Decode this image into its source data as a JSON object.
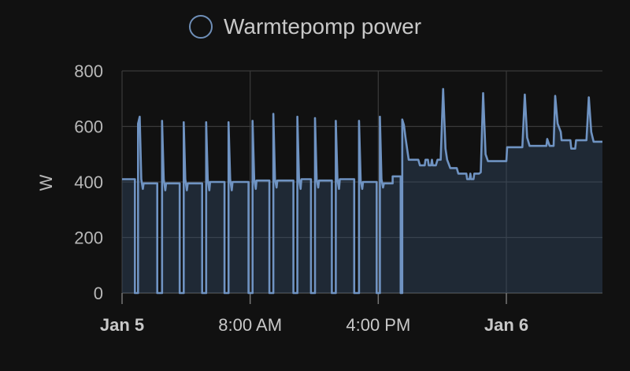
{
  "chart_data": {
    "type": "line",
    "ylabel": "W",
    "ylim": [
      0,
      800
    ],
    "yticks": [
      0,
      200,
      400,
      600,
      800
    ],
    "xlim_hours": [
      0,
      30
    ],
    "xticks": [
      {
        "label": "Jan 5",
        "hour": 0,
        "bold": true
      },
      {
        "label": "8:00 AM",
        "hour": 8,
        "bold": false
      },
      {
        "label": "4:00 PM",
        "hour": 16,
        "bold": false
      },
      {
        "label": "Jan 6",
        "hour": 24,
        "bold": true
      }
    ],
    "grid": true,
    "legend_position": "top",
    "colors": {
      "line": "#6f93c2",
      "fill": "#3a5578",
      "grid": "#3a3a3a"
    },
    "series": [
      {
        "name": "Warmtepomp power",
        "points": [
          [
            0.0,
            410
          ],
          [
            0.8,
            410
          ],
          [
            0.8,
            0
          ],
          [
            1.0,
            0
          ],
          [
            1.0,
            610
          ],
          [
            1.1,
            635
          ],
          [
            1.2,
            410
          ],
          [
            1.3,
            375
          ],
          [
            1.35,
            395
          ],
          [
            2.2,
            395
          ],
          [
            2.2,
            0
          ],
          [
            2.5,
            0
          ],
          [
            2.5,
            620
          ],
          [
            2.6,
            410
          ],
          [
            2.7,
            370
          ],
          [
            2.75,
            395
          ],
          [
            3.6,
            395
          ],
          [
            3.6,
            0
          ],
          [
            3.85,
            0
          ],
          [
            3.85,
            615
          ],
          [
            3.95,
            410
          ],
          [
            4.05,
            370
          ],
          [
            4.1,
            395
          ],
          [
            5.0,
            395
          ],
          [
            5.0,
            0
          ],
          [
            5.25,
            0
          ],
          [
            5.25,
            615
          ],
          [
            5.35,
            410
          ],
          [
            5.45,
            370
          ],
          [
            5.5,
            400
          ],
          [
            6.4,
            400
          ],
          [
            6.4,
            0
          ],
          [
            6.65,
            0
          ],
          [
            6.65,
            615
          ],
          [
            6.75,
            410
          ],
          [
            6.85,
            370
          ],
          [
            6.9,
            400
          ],
          [
            7.9,
            400
          ],
          [
            7.9,
            0
          ],
          [
            8.15,
            0
          ],
          [
            8.15,
            620
          ],
          [
            8.25,
            410
          ],
          [
            8.35,
            375
          ],
          [
            8.4,
            405
          ],
          [
            9.2,
            405
          ],
          [
            9.2,
            0
          ],
          [
            9.45,
            0
          ],
          [
            9.45,
            645
          ],
          [
            9.55,
            410
          ],
          [
            9.65,
            380
          ],
          [
            9.7,
            405
          ],
          [
            10.7,
            405
          ],
          [
            10.7,
            0
          ],
          [
            10.95,
            0
          ],
          [
            10.95,
            635
          ],
          [
            11.05,
            410
          ],
          [
            11.15,
            375
          ],
          [
            11.2,
            410
          ],
          [
            11.8,
            410
          ],
          [
            11.8,
            0
          ],
          [
            12.05,
            0
          ],
          [
            12.05,
            630
          ],
          [
            12.15,
            410
          ],
          [
            12.25,
            380
          ],
          [
            12.3,
            405
          ],
          [
            13.1,
            405
          ],
          [
            13.1,
            0
          ],
          [
            13.35,
            0
          ],
          [
            13.35,
            620
          ],
          [
            13.45,
            410
          ],
          [
            13.55,
            375
          ],
          [
            13.6,
            410
          ],
          [
            14.5,
            410
          ],
          [
            14.5,
            0
          ],
          [
            14.8,
            0
          ],
          [
            14.8,
            620
          ],
          [
            14.9,
            405
          ],
          [
            15.0,
            375
          ],
          [
            15.05,
            400
          ],
          [
            15.9,
            400
          ],
          [
            15.9,
            0
          ],
          [
            16.1,
            0
          ],
          [
            16.1,
            635
          ],
          [
            16.2,
            410
          ],
          [
            16.3,
            380
          ],
          [
            16.35,
            395
          ],
          [
            16.9,
            395
          ],
          [
            16.9,
            420
          ],
          [
            17.4,
            420
          ],
          [
            17.4,
            0
          ],
          [
            17.5,
            0
          ],
          [
            17.5,
            625
          ],
          [
            17.6,
            605
          ],
          [
            17.7,
            560
          ],
          [
            17.9,
            480
          ],
          [
            18.5,
            480
          ],
          [
            18.6,
            460
          ],
          [
            18.9,
            460
          ],
          [
            18.95,
            480
          ],
          [
            19.1,
            480
          ],
          [
            19.15,
            460
          ],
          [
            19.3,
            460
          ],
          [
            19.35,
            480
          ],
          [
            19.4,
            460
          ],
          [
            19.6,
            460
          ],
          [
            19.7,
            480
          ],
          [
            19.9,
            480
          ],
          [
            20.05,
            735
          ],
          [
            20.2,
            520
          ],
          [
            20.3,
            480
          ],
          [
            20.5,
            450
          ],
          [
            20.9,
            450
          ],
          [
            21.0,
            430
          ],
          [
            21.5,
            430
          ],
          [
            21.55,
            410
          ],
          [
            21.7,
            410
          ],
          [
            21.75,
            430
          ],
          [
            21.8,
            410
          ],
          [
            21.95,
            410
          ],
          [
            22.0,
            430
          ],
          [
            22.3,
            430
          ],
          [
            22.4,
            435
          ],
          [
            22.55,
            720
          ],
          [
            22.7,
            500
          ],
          [
            22.85,
            475
          ],
          [
            24.0,
            475
          ],
          [
            24.05,
            525
          ],
          [
            25.0,
            525
          ],
          [
            25.15,
            715
          ],
          [
            25.3,
            560
          ],
          [
            25.45,
            530
          ],
          [
            26.5,
            530
          ],
          [
            26.55,
            555
          ],
          [
            26.7,
            530
          ],
          [
            26.95,
            530
          ],
          [
            27.05,
            710
          ],
          [
            27.2,
            610
          ],
          [
            27.4,
            580
          ],
          [
            27.45,
            550
          ],
          [
            28.0,
            550
          ],
          [
            28.05,
            520
          ],
          [
            28.3,
            520
          ],
          [
            28.35,
            550
          ],
          [
            29.0,
            550
          ],
          [
            29.15,
            705
          ],
          [
            29.3,
            580
          ],
          [
            29.45,
            545
          ],
          [
            30.0,
            545
          ]
        ]
      }
    ]
  }
}
